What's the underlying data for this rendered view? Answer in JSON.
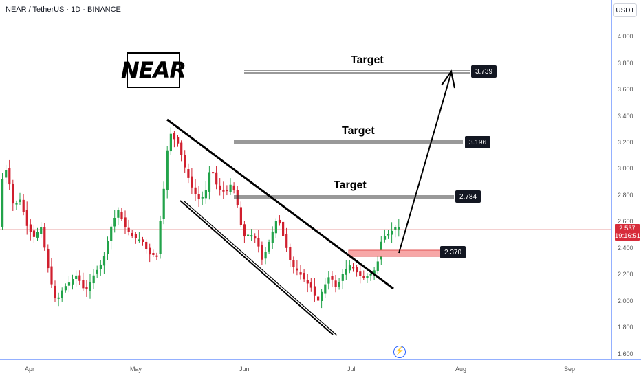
{
  "header": {
    "symbol_line": "NEAR / TetherUS · 1D · BINANCE",
    "currency": "USDT"
  },
  "logo_text": "NEAR",
  "price_scale": {
    "labels": [
      "4.000",
      "3.800",
      "3.600",
      "3.400",
      "3.200",
      "3.000",
      "2.800",
      "2.600",
      "2.400",
      "2.200",
      "2.000",
      "1.800",
      "1.600"
    ]
  },
  "time_scale": {
    "labels": [
      "Apr",
      "May",
      "Jun",
      "Jul",
      "Aug",
      "Sep"
    ]
  },
  "last_price": {
    "value": "2.537",
    "countdown": "19:16:51"
  },
  "annotations": {
    "targets": [
      {
        "label": "Target",
        "level": "3.739"
      },
      {
        "label": "Target",
        "level": "3.196"
      },
      {
        "label": "Target",
        "level": "2.784"
      }
    ],
    "support_level": "2.370"
  },
  "colors": {
    "up": "#22a34a",
    "down": "#d01f2e",
    "support_zone": "#f27a7a",
    "badge": "#131722",
    "last_price": "#d72c3a"
  },
  "icons": {
    "bolt": "lightning-icon"
  }
}
